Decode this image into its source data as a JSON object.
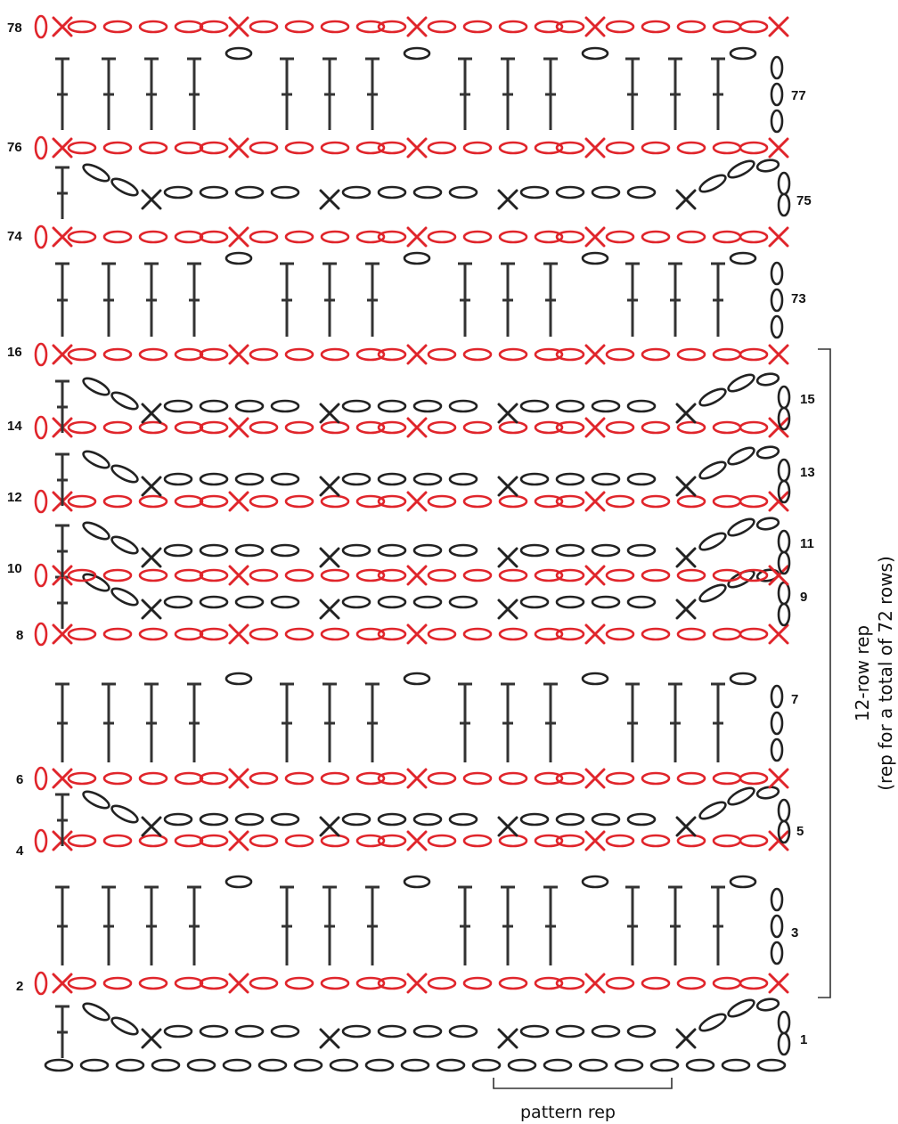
{
  "colors": {
    "odd_row_stitch": "#222222",
    "even_row_stitch": "#e0252b",
    "post": "#333333",
    "bracket": "#333333"
  },
  "legend": {
    "pattern_rep_label": "pattern rep",
    "side_rep_line1": "12-row rep",
    "side_rep_line2": "(rep for a total of 72 rows)"
  },
  "chart_data": {
    "type": "crochet-chart",
    "stitch_symbols": [
      "chain-oval",
      "single-crochet-x",
      "double-crochet-post"
    ],
    "rows": [
      {
        "label": "1",
        "type": "chain-sc"
      },
      {
        "label": "2",
        "type": "sc-chain",
        "label_side": "left"
      },
      {
        "label": "3",
        "type": "dc",
        "label_side": "right"
      },
      {
        "label": "4",
        "type": "sc-chain",
        "label_side": "left"
      },
      {
        "label": "5",
        "type": "chain-sc",
        "label_side": "right"
      },
      {
        "label": "6",
        "type": "sc-chain",
        "label_side": "left"
      },
      {
        "label": "7",
        "type": "dc",
        "label_side": "right"
      },
      {
        "label": "8",
        "type": "sc-chain",
        "label_side": "left"
      },
      {
        "label": "9",
        "type": "chain-sc",
        "label_side": "right"
      },
      {
        "label": "10",
        "type": "sc-chain",
        "label_side": "left"
      },
      {
        "label": "11",
        "type": "chain-sc",
        "label_side": "right"
      },
      {
        "label": "12",
        "type": "sc-chain",
        "label_side": "left"
      },
      {
        "label": "13",
        "type": "chain-sc",
        "label_side": "right"
      },
      {
        "label": "14",
        "type": "sc-chain",
        "label_side": "left"
      },
      {
        "label": "15",
        "type": "chain-sc",
        "label_side": "right"
      },
      {
        "label": "16",
        "type": "sc-chain",
        "label_side": "left"
      },
      {
        "label": "73",
        "type": "dc",
        "label_side": "right"
      },
      {
        "label": "74",
        "type": "sc-chain",
        "label_side": "left"
      },
      {
        "label": "75",
        "type": "chain-sc",
        "label_side": "right"
      },
      {
        "label": "76",
        "type": "sc-chain",
        "label_side": "left"
      },
      {
        "label": "77",
        "type": "dc",
        "label_side": "right"
      },
      {
        "label": "78",
        "type": "sc-chain",
        "label_side": "left"
      }
    ]
  }
}
